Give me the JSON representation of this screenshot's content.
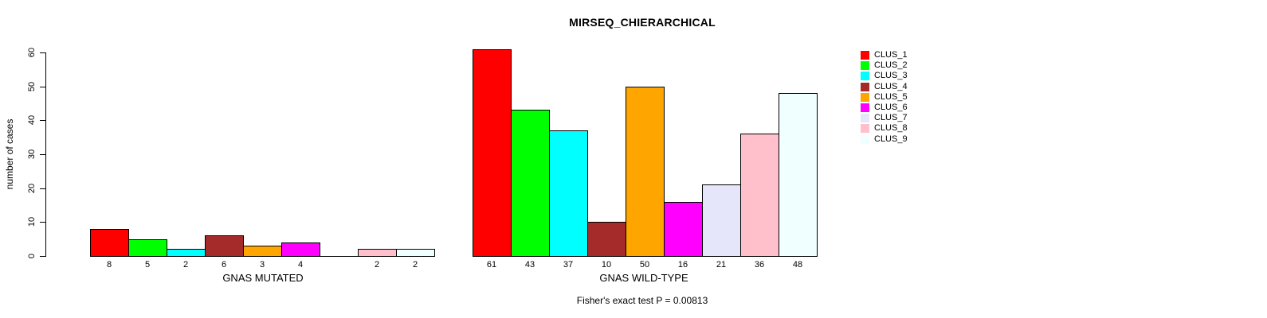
{
  "figure": {
    "title": "MIRSEQ_CHIERARCHICAL",
    "ylabel": "number of cases",
    "footnote": "Fisher's exact test P = 0.00813"
  },
  "chart_data": {
    "type": "bar",
    "title": "MIRSEQ_CHIERARCHICAL",
    "xlabel": "",
    "ylabel": "number of cases",
    "ylim": [
      0,
      60
    ],
    "yticks": [
      0,
      10,
      20,
      30,
      40,
      50,
      60
    ],
    "grid": false,
    "legend_position": "right",
    "annotation": "Fisher's exact test P = 0.00813",
    "categories": [
      "GNAS MUTATED",
      "GNAS WILD-TYPE"
    ],
    "series": [
      {
        "name": "CLUS_1",
        "color": "#ff0000",
        "values": [
          8,
          61
        ]
      },
      {
        "name": "CLUS_2",
        "color": "#00ff00",
        "values": [
          5,
          43
        ]
      },
      {
        "name": "CLUS_3",
        "color": "#00ffff",
        "values": [
          2,
          37
        ]
      },
      {
        "name": "CLUS_4",
        "color": "#a52a2a",
        "values": [
          6,
          10
        ]
      },
      {
        "name": "CLUS_5",
        "color": "#ffa500",
        "values": [
          3,
          50
        ]
      },
      {
        "name": "CLUS_6",
        "color": "#ff00ff",
        "values": [
          4,
          16
        ]
      },
      {
        "name": "CLUS_7",
        "color": "#e6e6fa",
        "values": [
          0,
          21
        ]
      },
      {
        "name": "CLUS_8",
        "color": "#ffc0cb",
        "values": [
          2,
          36
        ]
      },
      {
        "name": "CLUS_9",
        "color": "#f0ffff",
        "values": [
          2,
          48
        ]
      }
    ],
    "groups": [
      {
        "label": "GNAS MUTATED",
        "values": [
          8,
          5,
          2,
          6,
          3,
          4,
          0,
          2,
          2
        ],
        "bar_labels": [
          "8",
          "5",
          "2",
          "6",
          "3",
          "4",
          "",
          "2",
          "2"
        ]
      },
      {
        "label": "GNAS WILD-TYPE",
        "values": [
          61,
          43,
          37,
          10,
          50,
          16,
          21,
          36,
          48
        ],
        "bar_labels": [
          "61",
          "43",
          "37",
          "10",
          "50",
          "16",
          "21",
          "36",
          "48"
        ]
      }
    ]
  },
  "legend": {
    "items": [
      {
        "label": "CLUS_1",
        "color": "#ff0000"
      },
      {
        "label": "CLUS_2",
        "color": "#00ff00"
      },
      {
        "label": "CLUS_3",
        "color": "#00ffff"
      },
      {
        "label": "CLUS_4",
        "color": "#a52a2a"
      },
      {
        "label": "CLUS_5",
        "color": "#ffa500"
      },
      {
        "label": "CLUS_6",
        "color": "#ff00ff"
      },
      {
        "label": "CLUS_7",
        "color": "#e6e6fa"
      },
      {
        "label": "CLUS_8",
        "color": "#ffc0cb"
      },
      {
        "label": "CLUS_9",
        "color": "#f0ffff"
      }
    ]
  }
}
